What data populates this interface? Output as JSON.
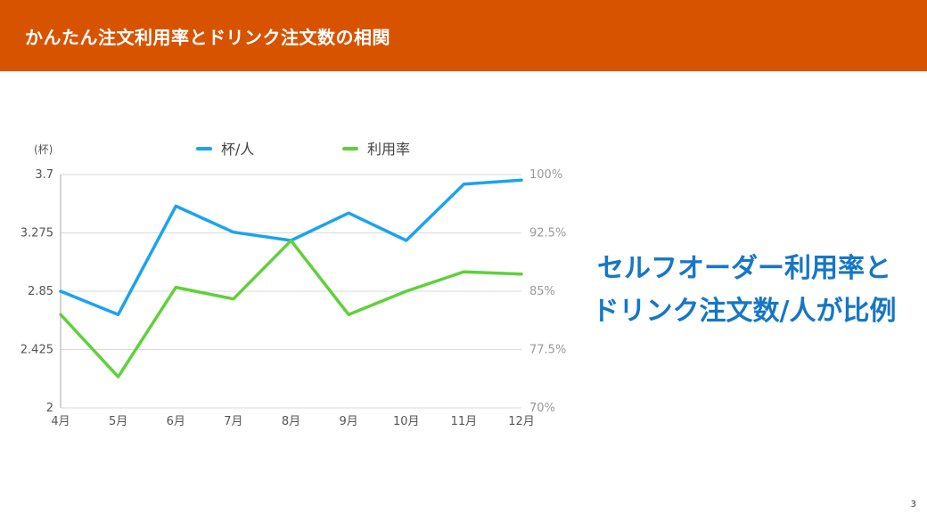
{
  "header": {
    "title": "かんたん注文利用率とドリンク注文数の相関"
  },
  "colors": {
    "header_bg": "#d85300",
    "series_cups": "#1aa3f0",
    "series_rate": "#5fd13a",
    "callout": "#1676c8"
  },
  "chart_data": {
    "type": "line",
    "categories": [
      "4月",
      "5月",
      "6月",
      "7月",
      "8月",
      "9月",
      "10月",
      "11月",
      "12月"
    ],
    "ylabel": "(杯)",
    "y_left": {
      "ticks": [
        "3.7",
        "3.275",
        "2.85",
        "2.425",
        "2"
      ],
      "ylim": [
        2,
        3.7
      ]
    },
    "y_right": {
      "ticks": [
        "100%",
        "92.5%",
        "85%",
        "77.5%",
        "70%"
      ],
      "ylim": [
        70,
        100
      ]
    },
    "grid": true,
    "legend_position": "top",
    "series": [
      {
        "name": "杯/人",
        "axis": "left",
        "color": "#1aa3f0",
        "values": [
          2.85,
          2.68,
          3.47,
          3.28,
          3.22,
          3.42,
          3.22,
          3.63,
          3.66
        ]
      },
      {
        "name": "利用率",
        "axis": "right",
        "color": "#5fd13a",
        "values": [
          82.0,
          74.0,
          85.5,
          84.0,
          91.5,
          82.0,
          85.0,
          87.5,
          87.2
        ]
      }
    ]
  },
  "callout": {
    "line1": "セルフオーダー利用率と",
    "line2": "ドリンク注文数/人が比例"
  },
  "footer": {
    "page": "3"
  }
}
